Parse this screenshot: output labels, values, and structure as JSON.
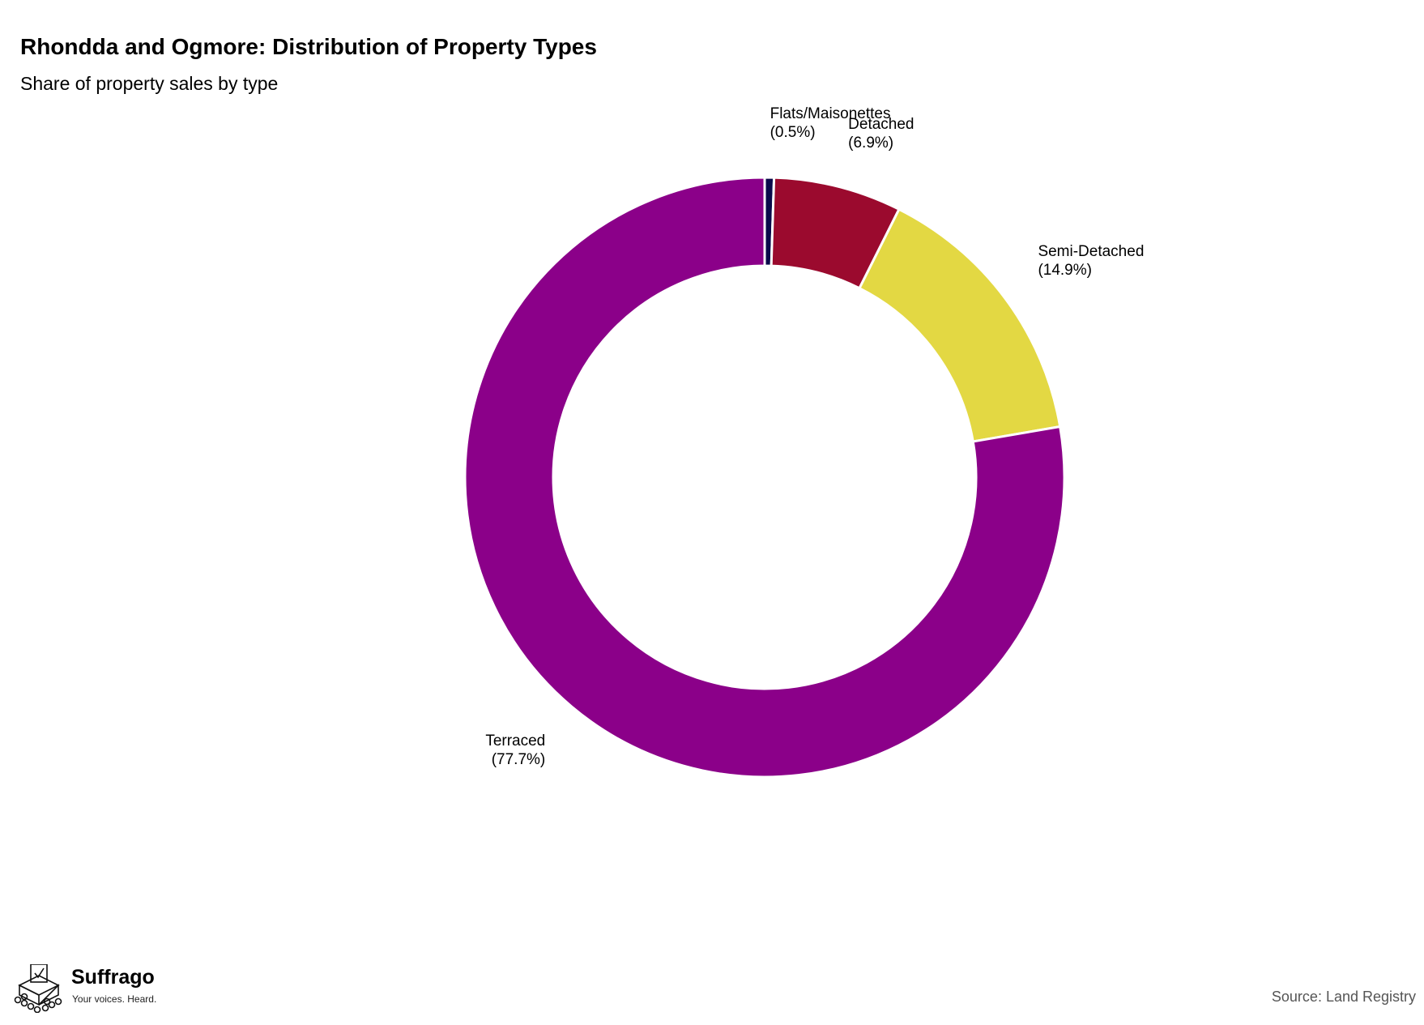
{
  "title": "Rhondda and Ogmore: Distribution of Property Types",
  "subtitle": "Share of property sales by type",
  "source": "Source: Land Registry",
  "brand": {
    "name": "Suffrago",
    "tagline": "Your voices. Heard."
  },
  "chart_data": {
    "type": "pie",
    "donut": true,
    "start": "12 o'clock, clockwise",
    "slices": [
      {
        "label": "Flats/Maisonettes",
        "value": 0.5,
        "value_label": "(0.5%)",
        "color": "#0a0a4a"
      },
      {
        "label": "Detached",
        "value": 6.9,
        "value_label": "(6.9%)",
        "color": "#9b0a2e"
      },
      {
        "label": "Semi-Detached",
        "value": 14.9,
        "value_label": "(14.9%)",
        "color": "#e3d843"
      },
      {
        "label": "Terraced",
        "value": 77.7,
        "value_label": "(77.7%)",
        "color": "#8b0089"
      }
    ]
  }
}
